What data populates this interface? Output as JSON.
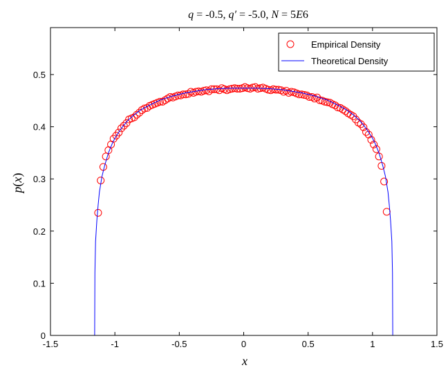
{
  "chart_data": {
    "type": "scatter",
    "title": "q = -0.5, q′ = -5.0, N = 5E6",
    "xlabel": "x",
    "ylabel": "p(x)",
    "xlim": [
      -1.5,
      1.5
    ],
    "ylim": [
      0,
      0.59
    ],
    "xticks": [
      -1.5,
      -1,
      -0.5,
      0,
      0.5,
      1,
      1.5
    ],
    "xtick_labels": [
      "-1.5",
      "-1",
      "-0.5",
      "0",
      "0.5",
      "1",
      "1.5"
    ],
    "yticks": [
      0,
      0.1,
      0.2,
      0.3,
      0.4,
      0.5
    ],
    "ytick_labels": [
      "0",
      "0.1",
      "0.2",
      "0.3",
      "0.4",
      "0.5"
    ],
    "grid": false,
    "legend_position": "top-right",
    "series": [
      {
        "name": "Empirical Density",
        "kind": "markers",
        "marker": "circle",
        "color": "#ff0000",
        "x": [
          -1.13,
          -1.11,
          -1.09,
          -1.07,
          -1.05,
          -1.03,
          -1.01,
          -0.99,
          -0.97,
          -0.95,
          -0.93,
          -0.91,
          -0.89,
          -0.87,
          -0.85,
          -0.83,
          -0.81,
          -0.79,
          -0.77,
          -0.75,
          -0.73,
          -0.71,
          -0.69,
          -0.67,
          -0.65,
          -0.63,
          -0.61,
          -0.59,
          -0.57,
          -0.55,
          -0.53,
          -0.51,
          -0.49,
          -0.47,
          -0.45,
          -0.43,
          -0.41,
          -0.39,
          -0.37,
          -0.35,
          -0.33,
          -0.31,
          -0.29,
          -0.27,
          -0.25,
          -0.23,
          -0.21,
          -0.19,
          -0.17,
          -0.15,
          -0.13,
          -0.11,
          -0.09,
          -0.07,
          -0.05,
          -0.03,
          -0.01,
          0.01,
          0.03,
          0.05,
          0.07,
          0.09,
          0.11,
          0.13,
          0.15,
          0.17,
          0.19,
          0.21,
          0.23,
          0.25,
          0.27,
          0.29,
          0.31,
          0.33,
          0.35,
          0.37,
          0.39,
          0.41,
          0.43,
          0.45,
          0.47,
          0.49,
          0.51,
          0.53,
          0.55,
          0.57,
          0.59,
          0.61,
          0.63,
          0.65,
          0.67,
          0.69,
          0.71,
          0.73,
          0.75,
          0.77,
          0.79,
          0.81,
          0.83,
          0.85,
          0.87,
          0.89,
          0.91,
          0.93,
          0.95,
          0.97,
          0.99,
          1.01,
          1.03,
          1.05,
          1.07,
          1.09,
          1.11
        ],
        "y": [
          0.235,
          0.297,
          0.323,
          0.343,
          0.355,
          0.366,
          0.377,
          0.383,
          0.389,
          0.397,
          0.402,
          0.407,
          0.414,
          0.416,
          0.418,
          0.423,
          0.427,
          0.432,
          0.435,
          0.436,
          0.44,
          0.442,
          0.444,
          0.446,
          0.448,
          0.448,
          0.451,
          0.454,
          0.457,
          0.456,
          0.458,
          0.46,
          0.46,
          0.462,
          0.462,
          0.463,
          0.467,
          0.465,
          0.467,
          0.468,
          0.467,
          0.469,
          0.47,
          0.468,
          0.472,
          0.472,
          0.472,
          0.47,
          0.474,
          0.472,
          0.47,
          0.472,
          0.473,
          0.474,
          0.473,
          0.473,
          0.474,
          0.476,
          0.474,
          0.473,
          0.475,
          0.476,
          0.473,
          0.474,
          0.475,
          0.473,
          0.471,
          0.47,
          0.472,
          0.471,
          0.471,
          0.47,
          0.467,
          0.469,
          0.465,
          0.467,
          0.466,
          0.464,
          0.462,
          0.462,
          0.461,
          0.46,
          0.457,
          0.457,
          0.454,
          0.456,
          0.451,
          0.45,
          0.448,
          0.447,
          0.446,
          0.443,
          0.441,
          0.437,
          0.436,
          0.433,
          0.43,
          0.426,
          0.423,
          0.42,
          0.414,
          0.408,
          0.405,
          0.399,
          0.39,
          0.385,
          0.375,
          0.366,
          0.357,
          0.343,
          0.325,
          0.295,
          0.237
        ],
        "y_note": ""
      },
      {
        "name": "Theoretical Density",
        "kind": "line",
        "color": "#0000ff",
        "x": [
          -1.157,
          -1.155,
          -1.15,
          -1.14,
          -1.13,
          -1.12,
          -1.1,
          -1.08,
          -1.05,
          -1.02,
          -1.0,
          -0.95,
          -0.9,
          -0.85,
          -0.8,
          -0.75,
          -0.7,
          -0.65,
          -0.6,
          -0.55,
          -0.5,
          -0.45,
          -0.4,
          -0.35,
          -0.3,
          -0.25,
          -0.2,
          -0.15,
          -0.1,
          -0.05,
          0.0,
          0.05,
          0.1,
          0.15,
          0.2,
          0.25,
          0.3,
          0.35,
          0.4,
          0.45,
          0.5,
          0.55,
          0.6,
          0.65,
          0.7,
          0.75,
          0.8,
          0.85,
          0.9,
          0.95,
          1.0,
          1.02,
          1.05,
          1.08,
          1.1,
          1.12,
          1.13,
          1.14,
          1.15,
          1.155,
          1.157
        ],
        "y": [
          0.0,
          0.12,
          0.18,
          0.22,
          0.25,
          0.275,
          0.305,
          0.325,
          0.35,
          0.368,
          0.378,
          0.397,
          0.412,
          0.423,
          0.432,
          0.439,
          0.445,
          0.451,
          0.455,
          0.459,
          0.462,
          0.465,
          0.467,
          0.469,
          0.471,
          0.472,
          0.473,
          0.4735,
          0.474,
          0.474,
          0.474,
          0.474,
          0.474,
          0.4735,
          0.473,
          0.472,
          0.471,
          0.469,
          0.467,
          0.465,
          0.462,
          0.459,
          0.455,
          0.451,
          0.445,
          0.439,
          0.432,
          0.423,
          0.412,
          0.397,
          0.378,
          0.368,
          0.35,
          0.325,
          0.305,
          0.275,
          0.25,
          0.22,
          0.18,
          0.12,
          0.0
        ]
      }
    ]
  }
}
